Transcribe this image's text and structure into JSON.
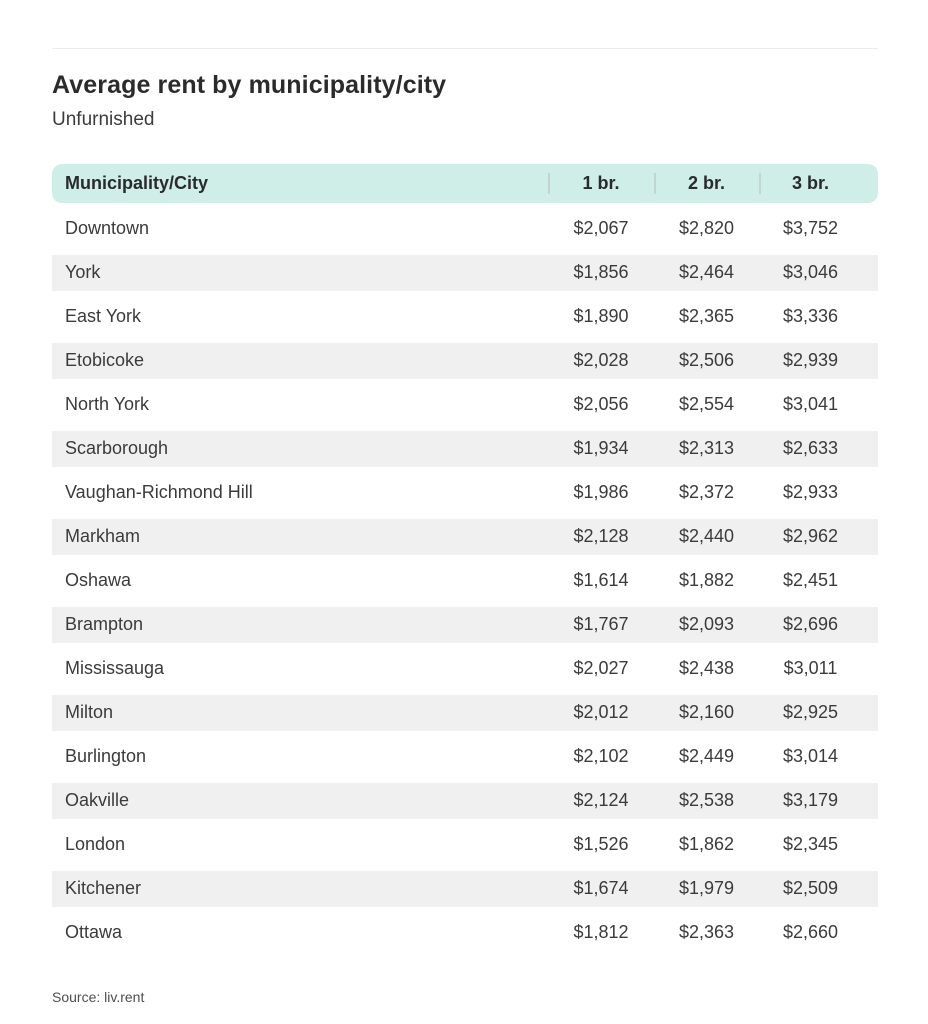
{
  "page": {
    "title": "Average rent by municipality/city",
    "subtitle": "Unfurnished",
    "source": "Source: liv.rent"
  },
  "chart_data": {
    "type": "table",
    "title": "Average rent by municipality/city",
    "subtitle": "Unfurnished",
    "columns": [
      "Municipality/City",
      "1 br.",
      "2 br.",
      "3 br."
    ],
    "rows": [
      [
        "Downtown",
        "$2,067",
        "$2,820",
        "$3,752"
      ],
      [
        "York",
        "$1,856",
        "$2,464",
        "$3,046"
      ],
      [
        "East York",
        "$1,890",
        "$2,365",
        "$3,336"
      ],
      [
        "Etobicoke",
        "$2,028",
        "$2,506",
        "$2,939"
      ],
      [
        "North York",
        "$2,056",
        "$2,554",
        "$3,041"
      ],
      [
        "Scarborough",
        "$1,934",
        "$2,313",
        "$2,633"
      ],
      [
        "Vaughan-Richmond Hill",
        "$1,986",
        "$2,372",
        "$2,933"
      ],
      [
        "Markham",
        "$2,128",
        "$2,440",
        "$2,962"
      ],
      [
        "Oshawa",
        "$1,614",
        "$1,882",
        "$2,451"
      ],
      [
        "Brampton",
        "$1,767",
        "$2,093",
        "$2,696"
      ],
      [
        "Mississauga",
        "$2,027",
        "$2,438",
        "$3,011"
      ],
      [
        "Milton",
        "$2,012",
        "$2,160",
        "$2,925"
      ],
      [
        "Burlington",
        "$2,102",
        "$2,449",
        "$3,014"
      ],
      [
        "Oakville",
        "$2,124",
        "$2,538",
        "$3,179"
      ],
      [
        "London",
        "$1,526",
        "$1,862",
        "$2,345"
      ],
      [
        "Kitchener",
        "$1,674",
        "$1,979",
        "$2,509"
      ],
      [
        "Ottawa",
        "$1,812",
        "$2,363",
        "$2,660"
      ]
    ],
    "layout": {
      "striped_rows": true,
      "stripe_starts_on": "second_row",
      "header_dividers": true
    },
    "source": "Source: liv.rent"
  },
  "colors": {
    "header_bg": "#cfeee8",
    "row_alt_bg": "#f0f0f0",
    "divider": "#c3d4d1",
    "title_text": "#2b2b2b",
    "body_text": "#3b3b3b"
  }
}
